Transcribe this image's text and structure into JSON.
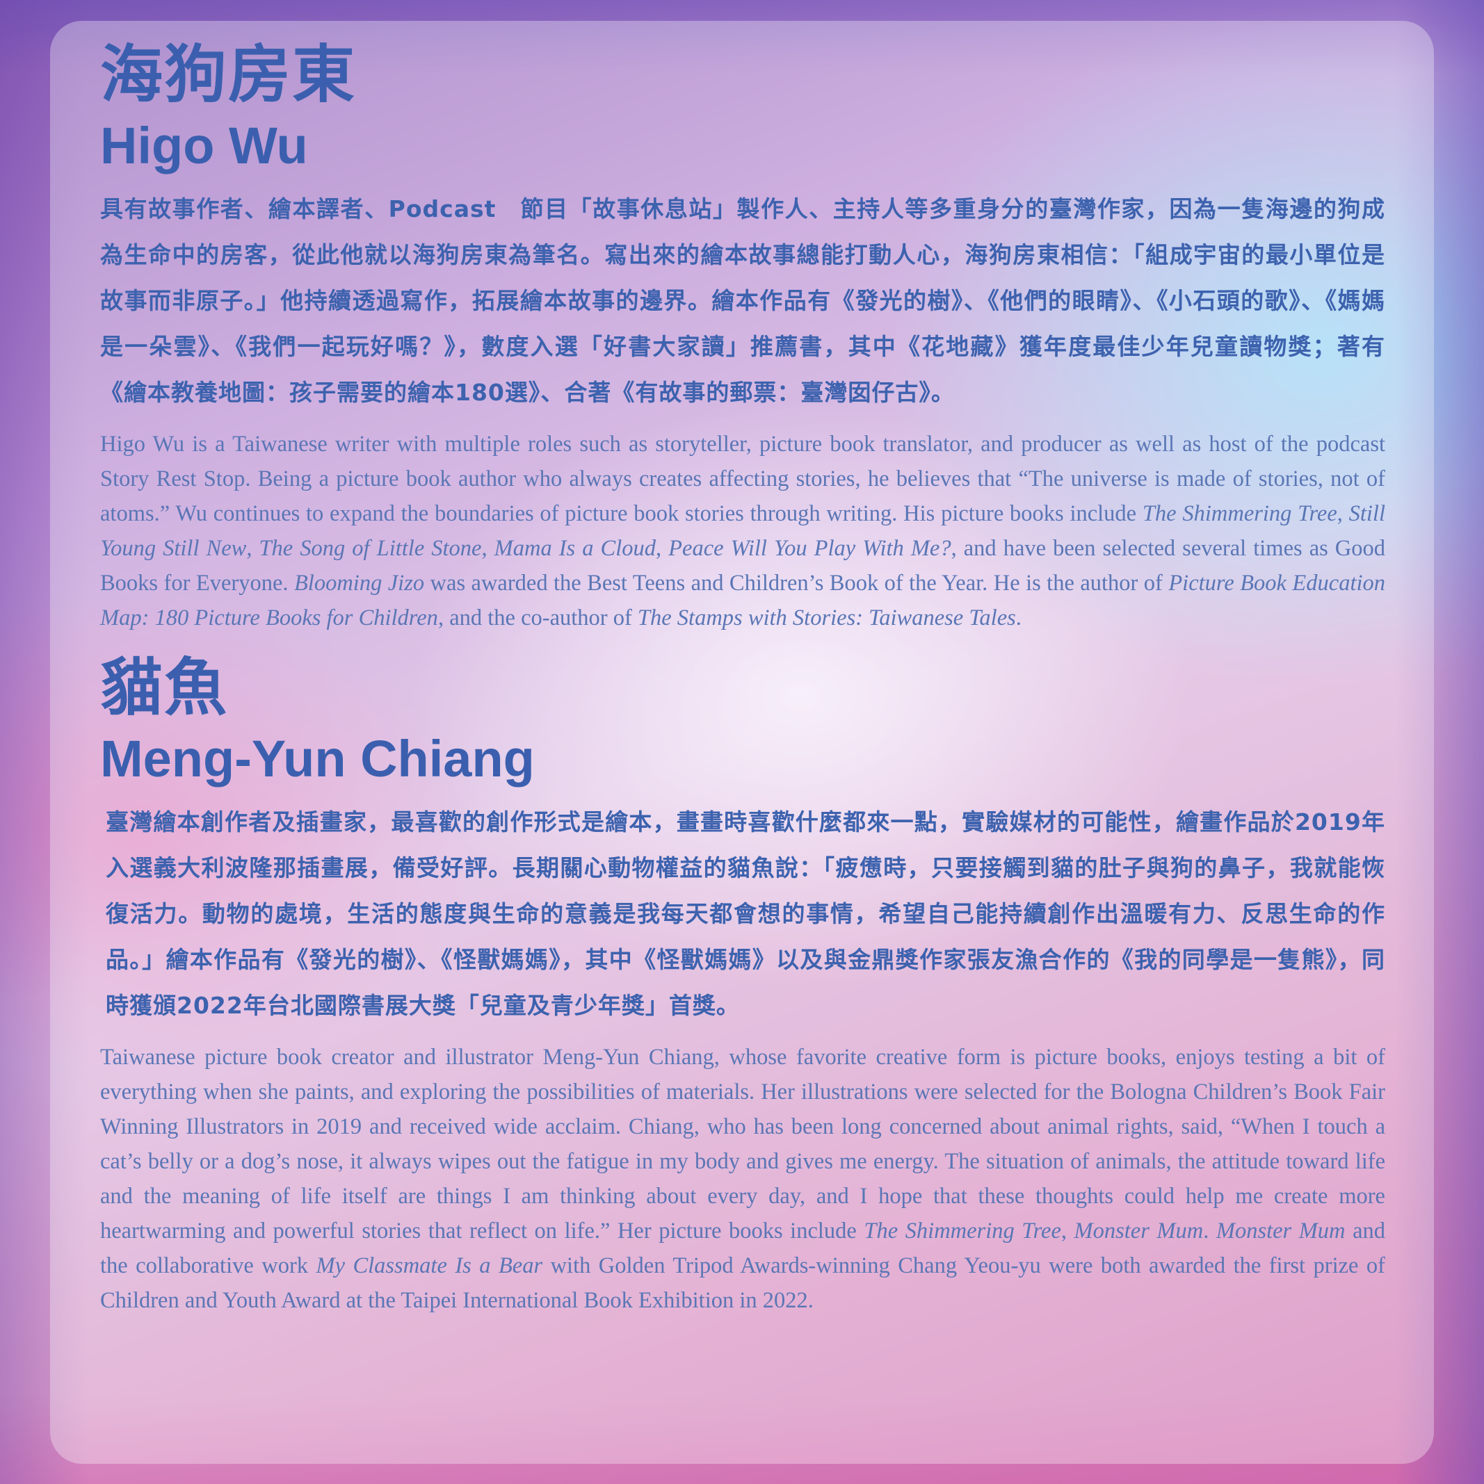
{
  "author1": {
    "name_cn": "海狗房東",
    "name_en": "Higo Wu",
    "bio_cn": "具有故事作者、繪本譯者、Podcast　節目「故事休息站」製作人、主持人等多重身分的臺灣作家，因為一隻海邊的狗成為生命中的房客，從此他就以海狗房東為筆名。寫出來的繪本故事總能打動人心，海狗房東相信：「組成宇宙的最小單位是故事而非原子。」他持續透過寫作，拓展繪本故事的邊界。繪本作品有《發光的樹》、《他們的眼睛》、《小石頭的歌》、《媽媽是一朵雲》、《我們一起玩好嗎？》，數度入選「好書大家讀」推薦書，其中《花地藏》獲年度最佳少年兒童讀物獎；著有《繪本教養地圖：孩子需要的繪本180選》、合著《有故事的郵票：臺灣囡仔古》。",
    "bio_en": {
      "p1": "Higo Wu is a Taiwanese writer with multiple roles such as storyteller, picture book translator, and producer as well as host of the podcast Story Rest Stop. Being a picture book author who always creates affecting stories, he believes that “The universe is made of stories, not of atoms.” Wu continues to expand the boundaries of picture book stories through writing. His picture books include ",
      "book1": "The Shimmering Tree",
      "sep1": ", ",
      "book2": "Still Young Still New",
      "sep2": ", ",
      "book3": "The Song of Little Stone",
      "sep3": ", ",
      "book4": "Mama Is a Cloud",
      "sep4": ", ",
      "book5": "Peace Will You Play With Me?",
      "p2": ", and have been selected several times as Good Books for Everyone. ",
      "book6": "Blooming Jizo",
      "p3": " was awarded the Best Teens and Children’s Book of the Year. He is the author of ",
      "book7": "Picture Book Education Map: 180 Picture Books for Children",
      "p4": ", and the co-author of ",
      "book8": "The Stamps with Stories: Taiwanese Tales",
      "p5": "."
    }
  },
  "author2": {
    "name_cn": "貓魚",
    "name_en": "Meng-Yun Chiang",
    "bio_cn": "臺灣繪本創作者及插畫家，最喜歡的創作形式是繪本，畫畫時喜歡什麼都來一點，實驗媒材的可能性，繪畫作品於2019年入選義大利波隆那插畫展，備受好評。長期關心動物權益的貓魚說：「疲憊時，只要接觸到貓的肚子與狗的鼻子，我就能恢復活力。動物的處境，生活的態度與生命的意義是我每天都會想的事情，希望自己能持續創作出溫暖有力、反思生命的作品。」繪本作品有《發光的樹》、《怪獸媽媽》，其中《怪獸媽媽》以及與金鼎獎作家張友漁合作的《我的同學是一隻熊》，同時獲頒2022年台北國際書展大獎「兒童及青少年獎」首獎。",
    "bio_en": {
      "p1": "Taiwanese picture book creator and illustrator Meng-Yun Chiang, whose favorite creative form is picture books, enjoys testing a bit of everything when she paints, and exploring the possibilities of materials. Her illustrations were selected for the Bologna Children’s Book Fair Winning Illustrators in 2019 and received wide acclaim. Chiang, who has been long concerned about animal rights, said, “When I touch a cat’s belly or a dog’s nose, it always wipes out the fatigue in my body and gives me energy. The situation of animals, the attitude toward life and the meaning of life itself are things I am thinking about every day, and I hope that these thoughts could help me create more heartwarming and powerful stories that reflect on life.” Her picture books include ",
      "book1": "The Shimmering Tree",
      "sep1": ", ",
      "book2": "Monster Mum",
      "sep2": ". ",
      "book3": "Monster Mum",
      "p2": " and the collaborative work ",
      "book4": "My Classmate Is a Bear",
      "p3": " with Golden Tripod Awards-winning Chang Yeou-yu were both awarded the first prize of Children and Youth Award at the Taipei International Book Exhibition in 2022."
    }
  }
}
